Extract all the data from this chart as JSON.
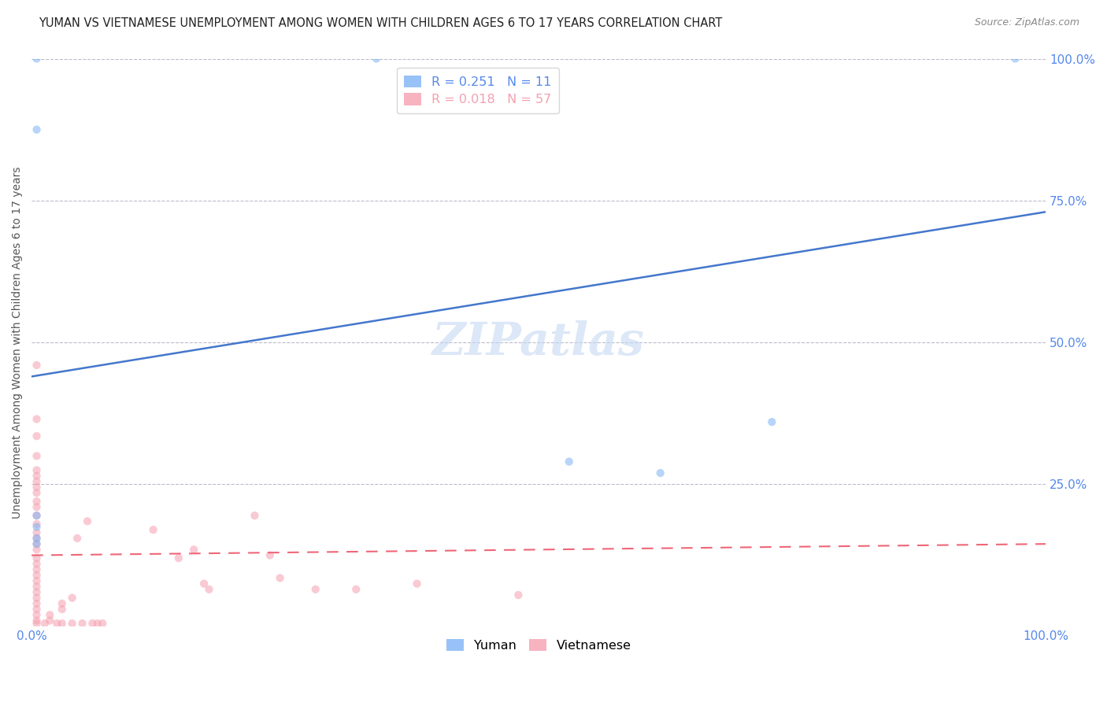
{
  "title": "YUMAN VS VIETNAMESE UNEMPLOYMENT AMONG WOMEN WITH CHILDREN AGES 6 TO 17 YEARS CORRELATION CHART",
  "source": "Source: ZipAtlas.com",
  "ylabel": "Unemployment Among Women with Children Ages 6 to 17 years",
  "xlim": [
    0,
    1.0
  ],
  "ylim": [
    0,
    1.0
  ],
  "xtick_positions": [
    0.0,
    1.0
  ],
  "xtick_labels": [
    "0.0%",
    "100.0%"
  ],
  "ytick_positions_right": [
    1.0,
    0.75,
    0.5,
    0.25
  ],
  "ytick_labels_right": [
    "100.0%",
    "75.0%",
    "50.0%",
    "25.0%"
  ],
  "watermark_text": "ZIPatlas",
  "legend_yuman_label": "R = 0.251   N = 11",
  "legend_viet_label": "R = 0.018   N = 57",
  "bottom_legend_labels": [
    "Yuman",
    "Vietnamese"
  ],
  "yuman_color": "#7EB3F5",
  "vietnamese_color": "#F5A0B0",
  "trend_blue_color": "#4477CC",
  "trend_pink_color": "#EE6677",
  "grid_color": "#BBBBCC",
  "background_color": "#FFFFFF",
  "title_color": "#222222",
  "right_axis_color": "#5588EE",
  "scatter_size": 55,
  "scatter_alpha": 0.55,
  "title_fontsize": 10.5,
  "source_fontsize": 9,
  "watermark_fontsize": 42,
  "watermark_color": "#C5D8F2",
  "watermark_alpha": 0.6,
  "legend_fontsize": 11.5,
  "axis_label_fontsize": 10,
  "tick_fontsize": 11,
  "yuman_trend_x": [
    0.0,
    1.0
  ],
  "yuman_trend_y": [
    0.44,
    0.73
  ],
  "viet_trend_x": [
    0.0,
    1.0
  ],
  "viet_trend_y": [
    0.125,
    0.145
  ],
  "yuman_scatter": [
    [
      0.005,
      1.0
    ],
    [
      0.005,
      0.875
    ],
    [
      0.34,
      1.0
    ],
    [
      0.005,
      0.195
    ],
    [
      0.005,
      0.175
    ],
    [
      0.005,
      0.155
    ],
    [
      0.005,
      0.145
    ],
    [
      0.53,
      0.29
    ],
    [
      0.62,
      0.27
    ],
    [
      0.73,
      0.36
    ],
    [
      0.97,
      1.0
    ]
  ],
  "vietnamese_scatter": [
    [
      0.005,
      0.46
    ],
    [
      0.005,
      0.365
    ],
    [
      0.005,
      0.335
    ],
    [
      0.005,
      0.3
    ],
    [
      0.005,
      0.275
    ],
    [
      0.005,
      0.265
    ],
    [
      0.005,
      0.255
    ],
    [
      0.005,
      0.245
    ],
    [
      0.005,
      0.235
    ],
    [
      0.005,
      0.22
    ],
    [
      0.005,
      0.21
    ],
    [
      0.005,
      0.195
    ],
    [
      0.005,
      0.18
    ],
    [
      0.005,
      0.165
    ],
    [
      0.005,
      0.155
    ],
    [
      0.005,
      0.145
    ],
    [
      0.005,
      0.135
    ],
    [
      0.005,
      0.12
    ],
    [
      0.005,
      0.11
    ],
    [
      0.005,
      0.1
    ],
    [
      0.005,
      0.09
    ],
    [
      0.005,
      0.08
    ],
    [
      0.005,
      0.07
    ],
    [
      0.005,
      0.06
    ],
    [
      0.005,
      0.05
    ],
    [
      0.005,
      0.04
    ],
    [
      0.005,
      0.03
    ],
    [
      0.005,
      0.02
    ],
    [
      0.005,
      0.01
    ],
    [
      0.005,
      0.005
    ],
    [
      0.013,
      0.005
    ],
    [
      0.018,
      0.02
    ],
    [
      0.018,
      0.01
    ],
    [
      0.025,
      0.005
    ],
    [
      0.03,
      0.04
    ],
    [
      0.03,
      0.03
    ],
    [
      0.03,
      0.005
    ],
    [
      0.04,
      0.05
    ],
    [
      0.04,
      0.005
    ],
    [
      0.045,
      0.155
    ],
    [
      0.05,
      0.005
    ],
    [
      0.055,
      0.185
    ],
    [
      0.06,
      0.005
    ],
    [
      0.065,
      0.005
    ],
    [
      0.07,
      0.005
    ],
    [
      0.12,
      0.17
    ],
    [
      0.145,
      0.12
    ],
    [
      0.16,
      0.135
    ],
    [
      0.17,
      0.075
    ],
    [
      0.175,
      0.065
    ],
    [
      0.22,
      0.195
    ],
    [
      0.235,
      0.125
    ],
    [
      0.245,
      0.085
    ],
    [
      0.28,
      0.065
    ],
    [
      0.32,
      0.065
    ],
    [
      0.38,
      0.075
    ],
    [
      0.48,
      0.055
    ]
  ]
}
